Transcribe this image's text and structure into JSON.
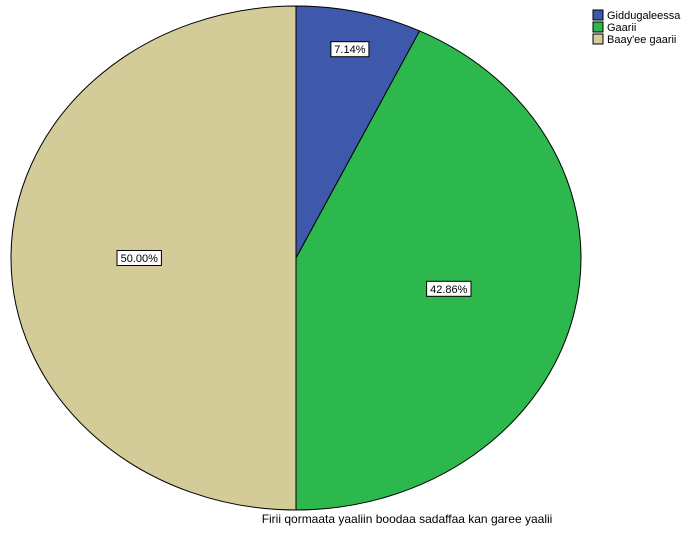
{
  "chart_data": {
    "type": "pie",
    "title": "",
    "xlabel": "Firii qormaata yaaliin boodaa sadaffaa kan garee yaalii",
    "categories": [
      "Giddugaleessa",
      "Gaarii",
      "Baay'ee gaarii"
    ],
    "values": [
      7.14,
      42.86,
      50.0
    ],
    "data_labels": [
      "7.14%",
      "42.86%",
      "50.00%"
    ],
    "colors": [
      "#3e58ac",
      "#2db84d",
      "#d4cc98"
    ],
    "legend_position": "top-right",
    "start_angle": "12 o'clock",
    "direction": "clockwise"
  }
}
